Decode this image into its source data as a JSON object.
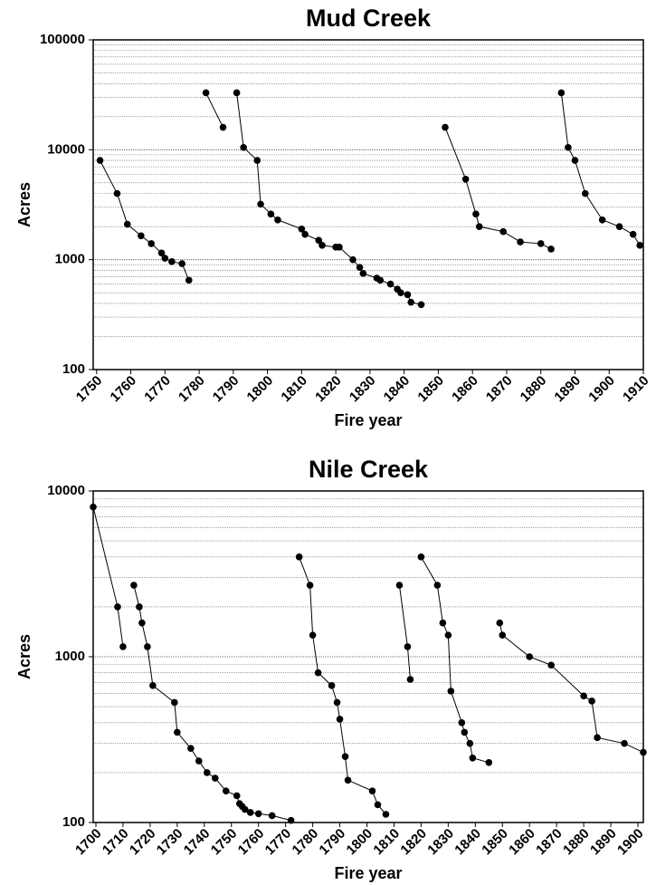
{
  "chart_data": [
    {
      "type": "line",
      "title": "Mud Creek",
      "xlabel": "Fire year",
      "ylabel": "Acres",
      "log_y": true,
      "grid": true,
      "color": "#000000",
      "xlim": [
        1749,
        1910
      ],
      "xticks": [
        1750,
        1760,
        1770,
        1780,
        1790,
        1800,
        1810,
        1820,
        1830,
        1840,
        1850,
        1860,
        1870,
        1880,
        1890,
        1900,
        1910
      ],
      "ylim": [
        100,
        100000
      ],
      "yticks": [
        100,
        1000,
        10000,
        100000
      ],
      "series": [
        {
          "color": "#000000",
          "x": [
            1751,
            1756,
            1759,
            1763,
            1766,
            1769,
            1770,
            1772,
            1775,
            1777
          ],
          "values": [
            8000,
            4000,
            2100,
            1650,
            1400,
            1150,
            1030,
            960,
            920,
            650
          ]
        },
        {
          "color": "#000000",
          "x": [
            1782,
            1787
          ],
          "values": [
            33000,
            16000
          ]
        },
        {
          "color": "#000000",
          "x": [
            1791,
            1793,
            1797,
            1798,
            1801,
            1803,
            1810,
            1811,
            1815,
            1816,
            1820,
            1821,
            1825,
            1827,
            1828,
            1832,
            1833,
            1836,
            1838,
            1839,
            1841,
            1842,
            1845
          ],
          "values": [
            33000,
            10500,
            8000,
            3200,
            2600,
            2300,
            1900,
            1700,
            1500,
            1350,
            1300,
            1300,
            1000,
            850,
            750,
            680,
            650,
            600,
            540,
            500,
            480,
            410,
            390
          ]
        },
        {
          "color": "#000000",
          "x": [
            1852,
            1858,
            1861,
            1862,
            1869,
            1874,
            1880,
            1883
          ],
          "values": [
            16000,
            5400,
            2600,
            2000,
            1800,
            1450,
            1400,
            1250
          ]
        },
        {
          "color": "#000000",
          "x": [
            1886,
            1888,
            1890,
            1893,
            1898,
            1903,
            1907,
            1909
          ],
          "values": [
            33000,
            10500,
            8000,
            4000,
            2300,
            2000,
            1700,
            1350
          ]
        }
      ]
    },
    {
      "type": "line",
      "title": "Nile Creek",
      "xlabel": "Fire year",
      "ylabel": "Acres",
      "log_y": true,
      "grid": true,
      "color": "#000000",
      "xlim": [
        1699,
        1902
      ],
      "xticks": [
        1700,
        1710,
        1720,
        1730,
        1740,
        1750,
        1760,
        1770,
        1780,
        1790,
        1800,
        1810,
        1820,
        1830,
        1840,
        1850,
        1860,
        1870,
        1880,
        1890,
        1900
      ],
      "ylim": [
        100,
        10000
      ],
      "yticks": [
        100,
        1000,
        10000
      ],
      "series": [
        {
          "color": "#000000",
          "x": [
            1699,
            1708,
            1710
          ],
          "values": [
            8000,
            2000,
            1150
          ]
        },
        {
          "color": "#000000",
          "x": [
            1714,
            1716,
            1717,
            1719,
            1721,
            1729,
            1730,
            1735,
            1738,
            1741,
            1744,
            1748,
            1752,
            1753,
            1754,
            1755,
            1757,
            1760,
            1765,
            1772
          ],
          "values": [
            2700,
            2000,
            1600,
            1150,
            670,
            530,
            350,
            280,
            235,
            200,
            185,
            155,
            145,
            130,
            125,
            120,
            115,
            113,
            110,
            103
          ]
        },
        {
          "color": "#000000",
          "x": [
            1775,
            1779,
            1780,
            1782,
            1787,
            1789,
            1790,
            1792,
            1793,
            1802,
            1804,
            1807
          ],
          "values": [
            4000,
            2700,
            1350,
            800,
            670,
            530,
            420,
            250,
            180,
            155,
            128,
            112
          ]
        },
        {
          "color": "#000000",
          "x": [
            1812,
            1815,
            1816
          ],
          "values": [
            2700,
            1150,
            730
          ]
        },
        {
          "color": "#000000",
          "x": [
            1820,
            1826,
            1828,
            1830,
            1831,
            1835,
            1836,
            1838,
            1839,
            1845
          ],
          "values": [
            4000,
            2700,
            1600,
            1350,
            620,
            400,
            350,
            300,
            245,
            230
          ]
        },
        {
          "color": "#000000",
          "x": [
            1849,
            1850,
            1860,
            1868,
            1880,
            1883,
            1885,
            1895,
            1902
          ],
          "values": [
            1600,
            1350,
            1000,
            890,
            580,
            540,
            325,
            300,
            265
          ]
        }
      ]
    }
  ]
}
